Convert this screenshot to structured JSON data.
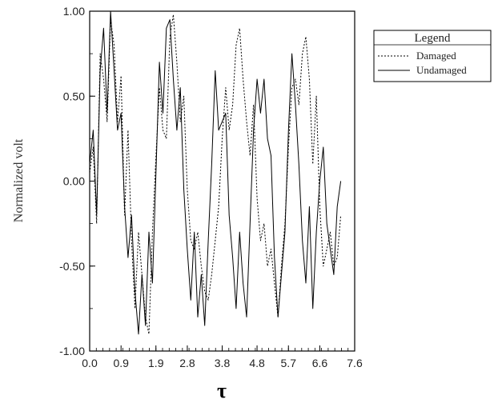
{
  "chart_data": {
    "type": "line",
    "xlabel": "τ",
    "ylabel": "Normalized volt",
    "xlim": [
      0.0,
      7.6
    ],
    "ylim": [
      -1.0,
      1.0
    ],
    "xticks": [
      "0.0",
      "0.9",
      "1.9",
      "2.8",
      "3.8",
      "4.8",
      "5.7",
      "6.6",
      "7.6"
    ],
    "yticks": [
      "1.00",
      "0.50",
      "0.00",
      "-0.50",
      "-1.00"
    ],
    "grid": false,
    "legend": {
      "title": "Legend",
      "placement": "right",
      "entries": [
        "Damaged",
        "Undamaged"
      ]
    },
    "series": [
      {
        "name": "Damaged",
        "style": "dotted",
        "x": [
          0.0,
          0.1,
          0.2,
          0.3,
          0.4,
          0.5,
          0.6,
          0.7,
          0.8,
          0.9,
          1.0,
          1.1,
          1.2,
          1.3,
          1.4,
          1.5,
          1.6,
          1.7,
          1.8,
          1.9,
          2.0,
          2.1,
          2.2,
          2.3,
          2.4,
          2.5,
          2.6,
          2.7,
          2.8,
          2.9,
          3.0,
          3.1,
          3.2,
          3.3,
          3.4,
          3.5,
          3.6,
          3.7,
          3.8,
          3.9,
          4.0,
          4.1,
          4.2,
          4.3,
          4.4,
          4.5,
          4.6,
          4.7,
          4.8,
          4.9,
          5.0,
          5.1,
          5.2,
          5.3,
          5.4,
          5.5,
          5.6,
          5.7,
          5.8,
          5.9,
          6.0,
          6.1,
          6.2,
          6.3,
          6.4,
          6.5,
          6.6,
          6.7,
          6.8,
          6.9,
          7.0,
          7.1,
          7.2
        ],
        "y": [
          0.05,
          0.2,
          -0.25,
          0.75,
          0.6,
          0.35,
          0.95,
          0.8,
          0.35,
          0.62,
          -0.2,
          0.3,
          -0.35,
          -0.75,
          -0.3,
          -0.55,
          -0.8,
          -0.9,
          -0.3,
          0.15,
          0.55,
          0.3,
          0.25,
          0.85,
          0.98,
          0.7,
          0.35,
          0.5,
          -0.05,
          -0.35,
          -0.4,
          -0.3,
          -0.5,
          -0.65,
          -0.7,
          -0.55,
          -0.35,
          -0.15,
          0.25,
          0.55,
          0.3,
          0.45,
          0.8,
          0.9,
          0.6,
          0.35,
          0.15,
          0.45,
          -0.1,
          -0.35,
          -0.25,
          -0.5,
          -0.4,
          -0.6,
          -0.8,
          -0.5,
          -0.25,
          0.2,
          0.55,
          0.6,
          0.45,
          0.75,
          0.85,
          0.6,
          0.1,
          0.5,
          -0.15,
          -0.5,
          -0.4,
          -0.3,
          -0.5,
          -0.45,
          -0.2
        ]
      },
      {
        "name": "Undamaged",
        "style": "solid",
        "x": [
          0.0,
          0.1,
          0.2,
          0.3,
          0.4,
          0.5,
          0.6,
          0.7,
          0.8,
          0.9,
          1.0,
          1.1,
          1.2,
          1.3,
          1.4,
          1.5,
          1.6,
          1.7,
          1.8,
          1.9,
          2.0,
          2.1,
          2.2,
          2.3,
          2.4,
          2.5,
          2.6,
          2.7,
          2.8,
          2.9,
          3.0,
          3.1,
          3.2,
          3.3,
          3.4,
          3.5,
          3.6,
          3.7,
          3.8,
          3.9,
          4.0,
          4.1,
          4.2,
          4.3,
          4.4,
          4.5,
          4.6,
          4.7,
          4.8,
          4.9,
          5.0,
          5.1,
          5.2,
          5.3,
          5.4,
          5.5,
          5.6,
          5.7,
          5.8,
          5.9,
          6.0,
          6.1,
          6.2,
          6.3,
          6.4,
          6.5,
          6.6,
          6.7,
          6.8,
          6.9,
          7.0,
          7.1,
          7.2
        ],
        "y": [
          0.1,
          0.3,
          -0.2,
          0.65,
          0.9,
          0.4,
          1.0,
          0.65,
          0.3,
          0.4,
          -0.15,
          -0.45,
          -0.2,
          -0.65,
          -0.9,
          -0.55,
          -0.85,
          -0.3,
          -0.6,
          0.05,
          0.7,
          0.4,
          0.9,
          0.95,
          0.6,
          0.3,
          0.55,
          -0.05,
          -0.4,
          -0.7,
          -0.3,
          -0.8,
          -0.55,
          -0.85,
          -0.35,
          0.1,
          0.65,
          0.3,
          0.35,
          0.4,
          -0.2,
          -0.45,
          -0.75,
          -0.3,
          -0.6,
          -0.8,
          -0.25,
          0.3,
          0.6,
          0.4,
          0.6,
          0.25,
          0.15,
          -0.45,
          -0.8,
          -0.55,
          -0.3,
          0.3,
          0.75,
          0.45,
          0.1,
          -0.35,
          -0.6,
          -0.15,
          -0.75,
          -0.3,
          0.0,
          0.2,
          -0.25,
          -0.4,
          -0.55,
          -0.15,
          0.0
        ]
      }
    ]
  }
}
